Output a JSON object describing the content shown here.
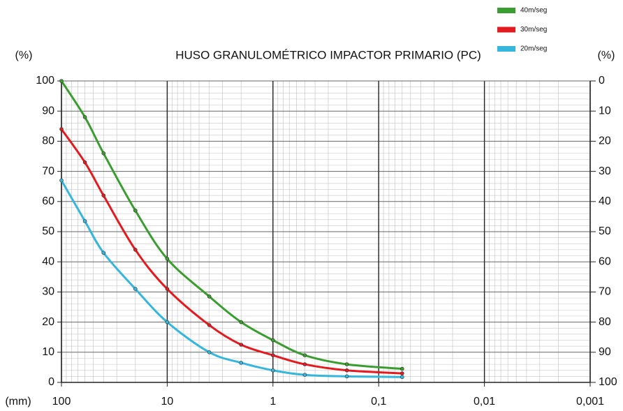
{
  "chart_data": {
    "type": "line",
    "title": "HUSO GRANULOMÉTRICO IMPACTOR PRIMARIO (PC)",
    "y_label": "(%)",
    "y2_label": "(%)",
    "x_label": "(mm)",
    "x": [
      100,
      60,
      40,
      20,
      10,
      4,
      2,
      1,
      0.5,
      0.2,
      0.06
    ],
    "series": [
      {
        "name": "40m/seg",
        "color": "#3a9d2f",
        "values": [
          100,
          88,
          76,
          57,
          41,
          28.5,
          20,
          14,
          9,
          6,
          4.5
        ]
      },
      {
        "name": "30m/seg",
        "color": "#e31b1f",
        "values": [
          84,
          73,
          62,
          44,
          31,
          19,
          12.5,
          9,
          6,
          4,
          3
        ]
      },
      {
        "name": "20m/seg",
        "color": "#35b6dd",
        "values": [
          67,
          53.5,
          43,
          31,
          20,
          10,
          6.5,
          4,
          2.5,
          2,
          1.8
        ]
      }
    ],
    "xlim": [
      100,
      0.001
    ],
    "log_x": true,
    "xticks": [
      100,
      10,
      1,
      {
        "value": 0.1,
        "label": "0,1"
      },
      {
        "value": 0.01,
        "label": "0,01"
      },
      {
        "value": 0.001,
        "label": "0,001"
      }
    ],
    "ylim": [
      0,
      100
    ],
    "yticks": [
      0,
      10,
      20,
      30,
      40,
      50,
      60,
      70,
      80,
      90,
      100
    ],
    "y2lim": [
      100,
      0
    ],
    "y2ticks": [
      0,
      10,
      20,
      30,
      40,
      50,
      60,
      70,
      80,
      90,
      100
    ],
    "grid": true,
    "legend": "top-right"
  }
}
